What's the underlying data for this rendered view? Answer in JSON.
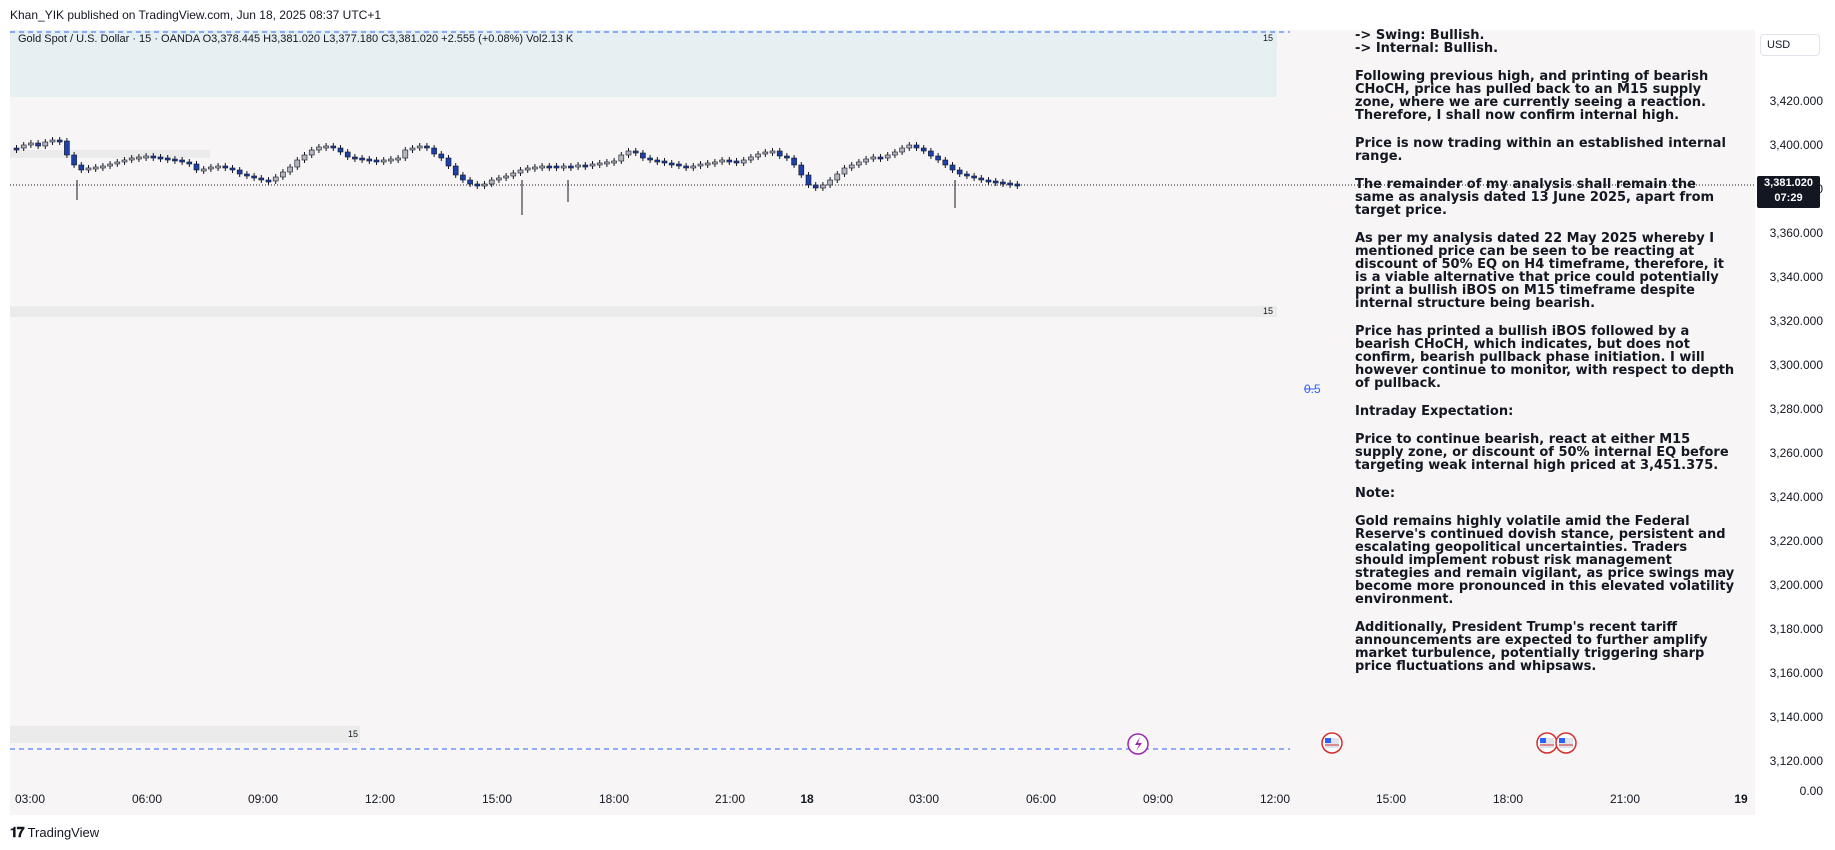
{
  "header": {
    "publisher_line": "Khan_YIK published on TradingView.com, Jun 18, 2025 08:37 UTC+1"
  },
  "symbol": {
    "ohlc_line": "Gold Spot / U.S. Dollar · 15 · OANDA  O3,378.445  H3,381.020  L3,377.180  C3,381.020  +2.555 (+0.08%)  Vol2.13 K",
    "interval_marker": "15"
  },
  "price_axis": {
    "currency": "USD",
    "ticks": [
      "3,420.000",
      "3,400.000",
      "3,380.000",
      "3,360.000",
      "3,340.000",
      "3,320.000",
      "3,300.000",
      "3,280.000",
      "3,260.000",
      "3,240.000",
      "3,220.000",
      "3,200.000",
      "3,180.000",
      "3,160.000",
      "3,140.000",
      "3,120.000",
      "0.00"
    ],
    "current_price": "3,381.020",
    "countdown": "07:29"
  },
  "time_axis": {
    "ticks": [
      "03:00",
      "06:00",
      "09:00",
      "12:00",
      "15:00",
      "18:00",
      "21:00",
      "18",
      "03:00",
      "06:00",
      "09:00",
      "12:00",
      "15:00",
      "18:00",
      "21:00",
      "19"
    ]
  },
  "fib": {
    "label": "0.5"
  },
  "notes": {
    "paragraphs": [
      "-> Swing: Bullish.\n-> Internal: Bullish.",
      "Following previous high, and printing of bearish CHoCH, price has pulled back to an M15 supply zone, where we are currently seeing a reaction.  Therefore, I shall now confirm internal high.",
      "Price is now trading within an established internal range.",
      "The remainder of my analysis shall remain the same as analysis dated  13 June 2025, apart from target price.",
      "As per my analysis dated 22 May 2025 whereby I mentioned price can be seen to be reacting at discount of 50% EQ on H4 timeframe, therefore, it is a viable alternative that price could potentially print a bullish iBOS on M15 timeframe despite internal structure being bearish.",
      "Price has printed a bullish iBOS followed by a bearish CHoCH, which indicates, but does not confirm, bearish pullback phase initiation.  I will however continue to monitor, with respect to depth of pullback.",
      "Intraday Expectation:",
      "Price to continue bearish, react at either M15 supply zone, or discount of 50% internal EQ before targeting weak internal high priced at 3,451.375.",
      "Note:",
      "Gold remains highly volatile amid the Federal Reserve's continued dovish stance, persistent and escalating geopolitical uncertainties. Traders should implement robust risk management strategies and remain vigilant, as price swings may become more pronounced in this elevated volatility environment.",
      "Additionally, President Trump's recent tariff announcements are expected to further amplify market turbulence, potentially triggering sharp price fluctuations and whipsaws."
    ]
  },
  "footer": {
    "brand": "TradingView",
    "logo": "tradingview-logo-icon"
  },
  "colors": {
    "bull": "#b2b5be",
    "bear": "#1c3faa",
    "dashed": "#2962ff",
    "zone": "#e6f0f2"
  }
}
